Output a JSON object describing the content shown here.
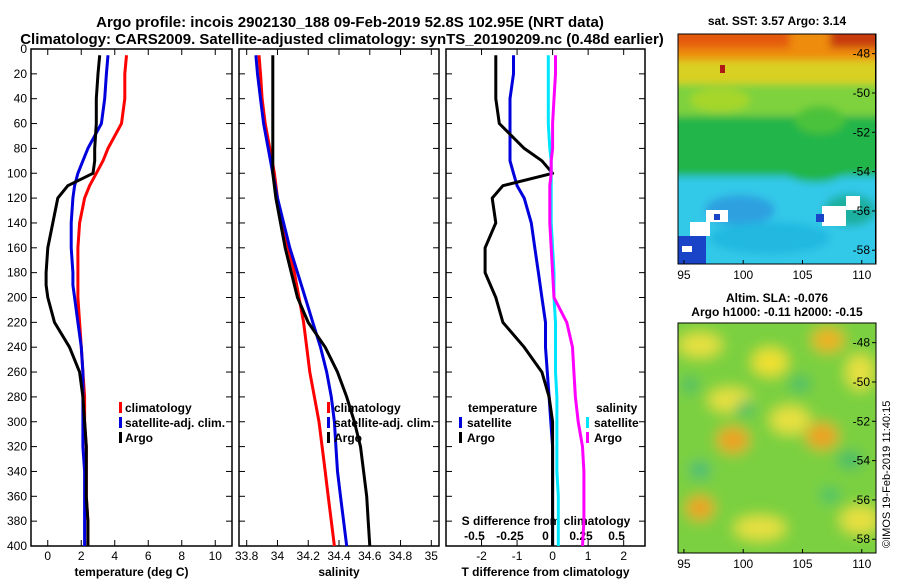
{
  "header": {
    "title_line1": "Argo profile: incois 2902130_188 09-Feb-2019 52.8S 102.95E (NRT data)",
    "title_line2": "Climatology: CARS2009. Satellite-adjusted climatology: synTS_20190209.nc (0.48d earlier)"
  },
  "colors": {
    "climatology": "#ff0000",
    "satellite": "#0000dd",
    "argo": "#000000",
    "sal_satellite": "#00e5ff",
    "sal_argo": "#ff00ff"
  },
  "depth_ticks": [
    "0",
    "20",
    "40",
    "60",
    "80",
    "100",
    "120",
    "140",
    "160",
    "180",
    "200",
    "220",
    "240",
    "260",
    "280",
    "300",
    "320",
    "340",
    "360",
    "380",
    "400"
  ],
  "chart_data": [
    {
      "type": "line",
      "title": "temperature",
      "xlabel": "temperature (deg C)",
      "ylabel": "depth",
      "xlim": [
        -1,
        11
      ],
      "ylim": [
        400,
        0
      ],
      "x_ticks": [
        "0",
        "2",
        "4",
        "6",
        "8",
        "10"
      ],
      "legend": [
        "climatology",
        "satellite-adj. clim.",
        "Argo"
      ],
      "depth": [
        5,
        20,
        40,
        60,
        80,
        90,
        100,
        110,
        120,
        140,
        160,
        180,
        190,
        200,
        220,
        240,
        260,
        280,
        300,
        320,
        340,
        360,
        380,
        400
      ],
      "series": [
        {
          "name": "climatology",
          "values": [
            4.7,
            4.6,
            4.6,
            4.4,
            3.6,
            3.3,
            2.9,
            2.5,
            2.2,
            1.9,
            1.8,
            1.8,
            1.8,
            1.8,
            1.9,
            2.0,
            2.1,
            2.2,
            2.2,
            2.3,
            2.3,
            2.3,
            2.4,
            2.4
          ]
        },
        {
          "name": "satellite-adj. clim.",
          "values": [
            3.6,
            3.5,
            3.4,
            3.2,
            2.4,
            2.1,
            1.8,
            1.6,
            1.5,
            1.4,
            1.4,
            1.5,
            1.5,
            1.6,
            1.8,
            2.0,
            2.1,
            2.1,
            2.1,
            2.1,
            2.2,
            2.2,
            2.2,
            2.2
          ]
        },
        {
          "name": "Argo",
          "values": [
            3.1,
            3.0,
            2.9,
            2.9,
            2.8,
            2.8,
            2.7,
            1.2,
            0.6,
            0.3,
            0.0,
            -0.1,
            -0.1,
            0.0,
            0.4,
            1.3,
            1.9,
            2.1,
            2.2,
            2.3,
            2.3,
            2.3,
            2.4,
            2.4
          ]
        }
      ]
    },
    {
      "type": "line",
      "title": "salinity",
      "xlabel": "salinity",
      "ylabel": "depth",
      "xlim": [
        33.75,
        35.05
      ],
      "ylim": [
        400,
        0
      ],
      "x_ticks": [
        "33.8",
        "34",
        "34.2",
        "34.4",
        "34.6",
        "34.8",
        "35"
      ],
      "legend": [
        "climatology",
        "satellite-adj. clim.",
        "Argo"
      ],
      "depth": [
        5,
        20,
        40,
        60,
        80,
        100,
        120,
        140,
        160,
        180,
        200,
        220,
        240,
        260,
        280,
        300,
        320,
        340,
        360,
        380,
        400
      ],
      "series": [
        {
          "name": "climatology",
          "values": [
            33.88,
            33.89,
            33.9,
            33.92,
            33.95,
            33.98,
            34.0,
            34.03,
            34.07,
            34.11,
            34.14,
            34.17,
            34.19,
            34.21,
            34.24,
            34.27,
            34.29,
            34.31,
            34.33,
            34.35,
            34.37
          ]
        },
        {
          "name": "satellite-adj. clim.",
          "values": [
            33.86,
            33.87,
            33.89,
            33.91,
            33.94,
            33.97,
            34.0,
            34.04,
            34.08,
            34.13,
            34.18,
            34.23,
            34.28,
            34.32,
            34.35,
            34.37,
            34.38,
            34.39,
            34.41,
            34.43,
            34.45
          ]
        },
        {
          "name": "Argo",
          "values": [
            33.97,
            33.97,
            33.97,
            33.97,
            33.97,
            33.97,
            33.99,
            34.02,
            34.05,
            34.09,
            34.13,
            34.2,
            34.31,
            34.39,
            34.45,
            34.5,
            34.54,
            34.56,
            34.58,
            34.59,
            34.6
          ]
        }
      ]
    },
    {
      "type": "line",
      "title": "difference from climatology",
      "xlabel": "T difference from climatology",
      "ylabel": "depth",
      "xlim": [
        -3,
        2.6
      ],
      "ylim": [
        400,
        0
      ],
      "x_ticks": [
        "-2",
        "-1",
        "0",
        "1",
        "2"
      ],
      "secondary_xlabel": "S difference from climatology",
      "secondary_xlim": [
        -0.7,
        0.7
      ],
      "secondary_x_ticks": [
        "-0.5",
        "-0.25",
        "0",
        "0.25",
        "0.5"
      ],
      "legend": [
        "temperature satellite",
        "temperature Argo",
        "salinity satellite",
        "salinity Argo"
      ],
      "depth": [
        5,
        20,
        40,
        60,
        80,
        90,
        100,
        110,
        120,
        140,
        160,
        180,
        200,
        220,
        240,
        260,
        280,
        300,
        320,
        340,
        360,
        380,
        400
      ],
      "series": [
        {
          "name": "temperature satellite",
          "axis": "T",
          "values": [
            -1.1,
            -1.1,
            -1.2,
            -1.2,
            -1.2,
            -1.2,
            -1.1,
            -1.0,
            -0.8,
            -0.6,
            -0.5,
            -0.4,
            -0.3,
            -0.2,
            -0.2,
            -0.15,
            -0.1,
            -0.05,
            0.0,
            0.0,
            0.0,
            0.0,
            0.0
          ]
        },
        {
          "name": "temperature Argo",
          "axis": "T",
          "values": [
            -1.6,
            -1.6,
            -1.6,
            -1.5,
            -0.8,
            -0.3,
            0.0,
            -1.4,
            -1.7,
            -1.6,
            -1.9,
            -1.9,
            -1.6,
            -1.4,
            -0.8,
            -0.3,
            -0.1,
            0.0,
            0.0,
            0.0,
            0.0,
            0.0,
            0.0
          ]
        },
        {
          "name": "salinity satellite",
          "axis": "S",
          "values": [
            0.02,
            0.02,
            0.02,
            0.02,
            0.03,
            0.04,
            0.04,
            0.04,
            0.04,
            0.04,
            0.05,
            0.06,
            0.06,
            0.07,
            0.07,
            0.07,
            0.08,
            0.08,
            0.08,
            0.08,
            0.09,
            0.09,
            0.09
          ]
        },
        {
          "name": "salinity Argo",
          "axis": "S",
          "values": [
            0.07,
            0.07,
            0.06,
            0.05,
            0.05,
            0.04,
            0.04,
            0.03,
            0.03,
            0.03,
            0.04,
            0.05,
            0.06,
            0.15,
            0.19,
            0.2,
            0.21,
            0.23,
            0.26,
            0.27,
            0.27,
            0.27,
            0.26
          ]
        }
      ]
    },
    {
      "type": "heatmap",
      "title": "sat. SST: 3.57 Argo: 3.14",
      "x_ticks": [
        "95",
        "100",
        "105",
        "110"
      ],
      "y_ticks": [
        "-48",
        "-50",
        "-52",
        "-54",
        "-56",
        "-58"
      ]
    },
    {
      "type": "heatmap",
      "title": "Altim. SLA: -0.076",
      "subtitle": "Argo h1000: -0.11 h2000: -0.15",
      "x_ticks": [
        "95",
        "100",
        "105",
        "110"
      ],
      "y_ticks": [
        "-48",
        "-50",
        "-52",
        "-54",
        "-56",
        "-58"
      ]
    }
  ],
  "panels": {
    "p1": {
      "legend_climatology": "climatology",
      "legend_satellite": "satellite-adj. clim.",
      "legend_argo": "Argo"
    },
    "p2": {
      "legend_climatology": "climatology",
      "legend_satellite": "satellite-adj. clim.",
      "legend_argo": "Argo"
    },
    "p3": {
      "legend_temperature": "temperature",
      "legend_t_satellite": "satellite",
      "legend_t_argo": "Argo",
      "legend_salinity": "salinity",
      "legend_s_satellite": "satellite",
      "legend_s_argo": "Argo"
    }
  },
  "maps": {
    "sst_title": "sat. SST: 3.57 Argo: 3.14",
    "sla_title": "Altim. SLA: -0.076",
    "sla_subtitle": "Argo h1000: -0.11 h2000: -0.15",
    "lon_ticks": [
      "95",
      "100",
      "105",
      "110"
    ],
    "lat_ticks": [
      "-48",
      "-50",
      "-52",
      "-54",
      "-56",
      "-58"
    ]
  },
  "footer": {
    "credit": "©IMOS 19-Feb-2019 11:40:15"
  }
}
